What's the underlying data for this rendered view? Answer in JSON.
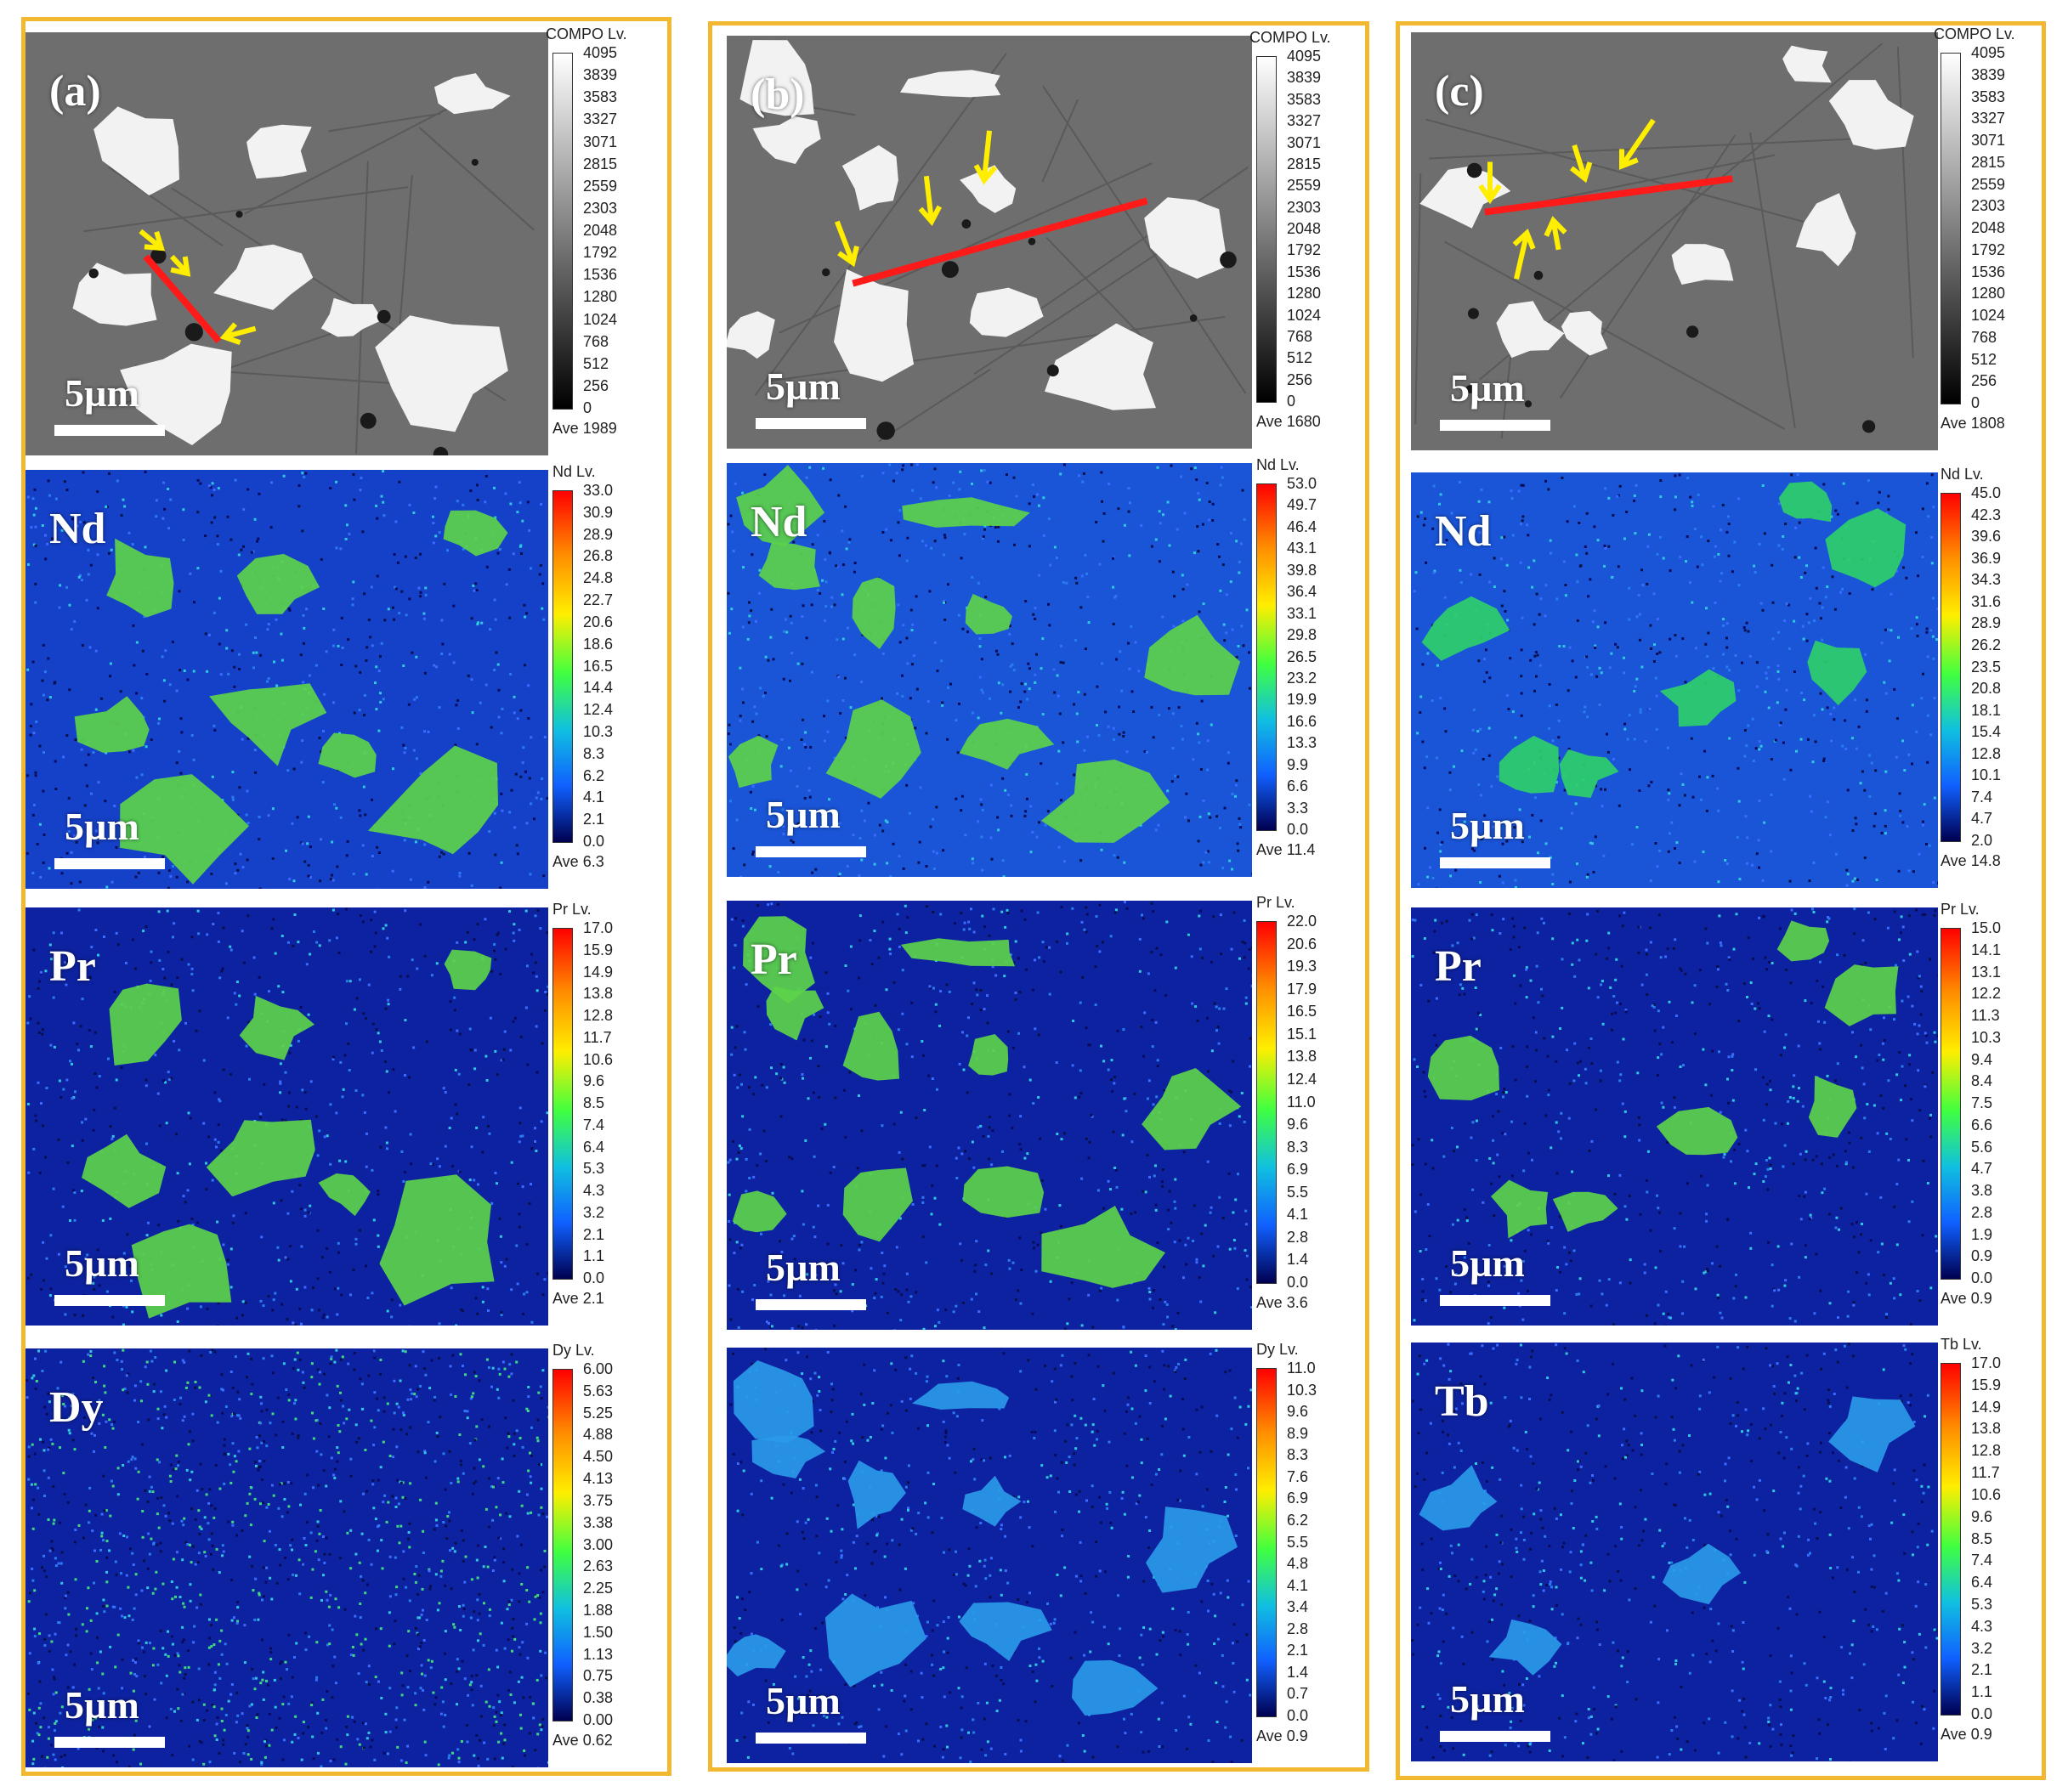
{
  "colors": {
    "border": "#f2b830",
    "line": "#ff1a1a",
    "arrow": "#ffee00"
  },
  "columns": [
    {
      "label": "(a)",
      "panels": [
        {
          "kind": "compo",
          "element": "",
          "scale_text": "5µm",
          "cbar_title": "COMPO  Lv.",
          "ticks": [
            "4095",
            "3839",
            "3583",
            "3327",
            "3071",
            "2815",
            "2559",
            "2303",
            "2048",
            "1792",
            "1536",
            "1280",
            "1024",
            "768",
            "512",
            "256",
            "0"
          ],
          "ave": "Ave 1989"
        },
        {
          "kind": "map",
          "element": "Nd",
          "scale_text": "5µm",
          "cbar_title": "Nd  Lv.",
          "ticks": [
            "33.0",
            "30.9",
            "28.9",
            "26.8",
            "24.8",
            "22.7",
            "20.6",
            "18.6",
            "16.5",
            "14.4",
            "12.4",
            "10.3",
            "8.3",
            "6.2",
            "4.1",
            "2.1",
            "0.0"
          ],
          "ave": "Ave 6.3"
        },
        {
          "kind": "map",
          "element": "Pr",
          "scale_text": "5µm",
          "cbar_title": "Pr  Lv.",
          "ticks": [
            "17.0",
            "15.9",
            "14.9",
            "13.8",
            "12.8",
            "11.7",
            "10.6",
            "9.6",
            "8.5",
            "7.4",
            "6.4",
            "5.3",
            "4.3",
            "3.2",
            "2.1",
            "1.1",
            "0.0"
          ],
          "ave": "Ave 2.1"
        },
        {
          "kind": "map",
          "element": "Dy",
          "scale_text": "5µm",
          "cbar_title": "Dy  Lv.",
          "ticks": [
            "6.00",
            "5.63",
            "5.25",
            "4.88",
            "4.50",
            "4.13",
            "3.75",
            "3.38",
            "3.00",
            "2.63",
            "2.25",
            "1.88",
            "1.50",
            "1.13",
            "0.75",
            "0.38",
            "0.00"
          ],
          "ave": "Ave 0.62"
        }
      ]
    },
    {
      "label": "(b)",
      "panels": [
        {
          "kind": "compo",
          "element": "",
          "scale_text": "5µm",
          "cbar_title": "COMPO  Lv.",
          "ticks": [
            "4095",
            "3839",
            "3583",
            "3327",
            "3071",
            "2815",
            "2559",
            "2303",
            "2048",
            "1792",
            "1536",
            "1280",
            "1024",
            "768",
            "512",
            "256",
            "0"
          ],
          "ave": "Ave 1680"
        },
        {
          "kind": "map",
          "element": "Nd",
          "scale_text": "5µm",
          "cbar_title": "Nd  Lv.",
          "ticks": [
            "53.0",
            "49.7",
            "46.4",
            "43.1",
            "39.8",
            "36.4",
            "33.1",
            "29.8",
            "26.5",
            "23.2",
            "19.9",
            "16.6",
            "13.3",
            "9.9",
            "6.6",
            "3.3",
            "0.0"
          ],
          "ave": "Ave 11.4"
        },
        {
          "kind": "map",
          "element": "Pr",
          "scale_text": "5µm",
          "cbar_title": "Pr  Lv.",
          "ticks": [
            "22.0",
            "20.6",
            "19.3",
            "17.9",
            "16.5",
            "15.1",
            "13.8",
            "12.4",
            "11.0",
            "9.6",
            "8.3",
            "6.9",
            "5.5",
            "4.1",
            "2.8",
            "1.4",
            "0.0"
          ],
          "ave": "Ave 3.6"
        },
        {
          "kind": "map",
          "element": "",
          "scale_text": "5µm",
          "cbar_title": "Dy  Lv.",
          "ticks": [
            "11.0",
            "10.3",
            "9.6",
            "8.9",
            "8.3",
            "7.6",
            "6.9",
            "6.2",
            "5.5",
            "4.8",
            "4.1",
            "3.4",
            "2.8",
            "2.1",
            "1.4",
            "0.7",
            "0.0"
          ],
          "ave": "Ave 0.9"
        }
      ]
    },
    {
      "label": "(c)",
      "panels": [
        {
          "kind": "compo",
          "element": "",
          "scale_text": "5µm",
          "cbar_title": "COMPO  Lv.",
          "ticks": [
            "4095",
            "3839",
            "3583",
            "3327",
            "3071",
            "2815",
            "2559",
            "2303",
            "2048",
            "1792",
            "1536",
            "1280",
            "1024",
            "768",
            "512",
            "256",
            "0"
          ],
          "ave": "Ave 1808"
        },
        {
          "kind": "map",
          "element": "Nd",
          "scale_text": "5µm",
          "cbar_title": "Nd  Lv.",
          "ticks": [
            "45.0",
            "42.3",
            "39.6",
            "36.9",
            "34.3",
            "31.6",
            "28.9",
            "26.2",
            "23.5",
            "20.8",
            "18.1",
            "15.4",
            "12.8",
            "10.1",
            "7.4",
            "4.7",
            "2.0"
          ],
          "ave": "Ave 14.8"
        },
        {
          "kind": "map",
          "element": "Pr",
          "scale_text": "5µm",
          "cbar_title": "Pr  Lv.",
          "ticks": [
            "15.0",
            "14.1",
            "13.1",
            "12.2",
            "11.3",
            "10.3",
            "9.4",
            "8.4",
            "7.5",
            "6.6",
            "5.6",
            "4.7",
            "3.8",
            "2.8",
            "1.9",
            "0.9",
            "0.0"
          ],
          "ave": "Ave 0.9"
        },
        {
          "kind": "map",
          "element": "Tb",
          "scale_text": "5µm",
          "cbar_title": "Tb  Lv.",
          "ticks": [
            "17.0",
            "15.9",
            "14.9",
            "13.8",
            "12.8",
            "11.7",
            "10.6",
            "9.6",
            "8.5",
            "7.4",
            "6.4",
            "5.3",
            "4.3",
            "3.2",
            "2.1",
            "1.1",
            "0.0"
          ],
          "ave": "Ave 0.9"
        }
      ]
    }
  ]
}
